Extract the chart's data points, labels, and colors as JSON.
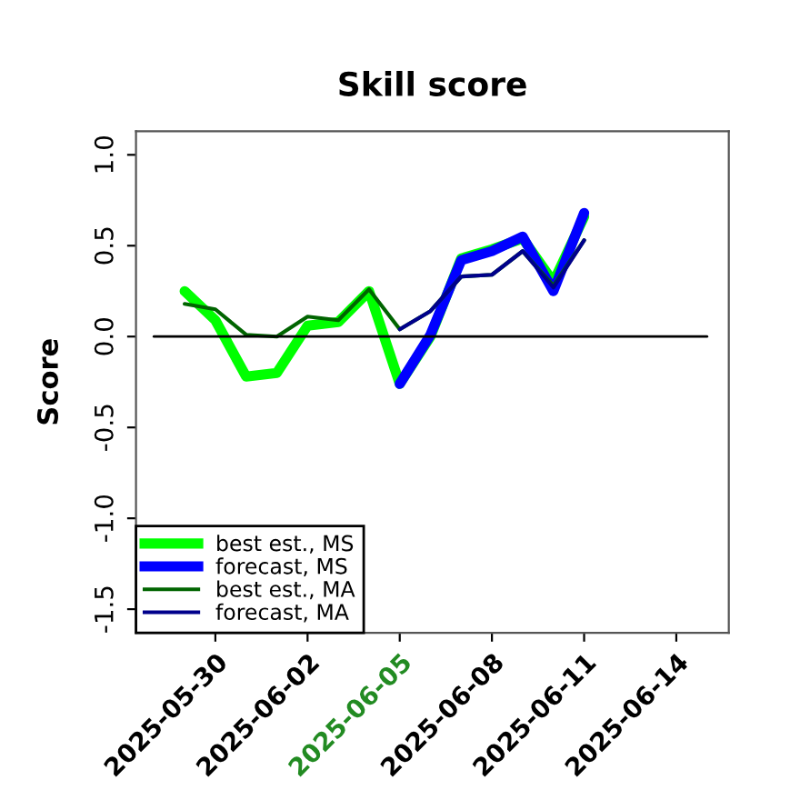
{
  "chart_data": {
    "type": "line",
    "title": "Skill score",
    "ylabel": "Score",
    "x": [
      "2025-05-29",
      "2025-05-30",
      "2025-05-31",
      "2025-06-01",
      "2025-06-02",
      "2025-06-03",
      "2025-06-04",
      "2025-06-05",
      "2025-06-06",
      "2025-06-07",
      "2025-06-08",
      "2025-06-09",
      "2025-06-10",
      "2025-06-11"
    ],
    "series": [
      {
        "name": "best est., MS",
        "color": "#00ff00",
        "values": [
          0.25,
          0.09,
          -0.22,
          -0.2,
          0.06,
          0.08,
          0.25,
          -0.26,
          0.0,
          0.43,
          0.48,
          0.54,
          0.3,
          0.66
        ]
      },
      {
        "name": "forecast, MS",
        "color": "#0000ff",
        "values": [
          null,
          null,
          null,
          null,
          null,
          null,
          null,
          -0.26,
          0.01,
          0.42,
          0.47,
          0.55,
          0.25,
          0.68
        ]
      },
      {
        "name": "best est., MA",
        "color": "#006400",
        "values": [
          0.18,
          0.15,
          0.01,
          0.0,
          0.11,
          0.09,
          0.26,
          0.04,
          0.14,
          0.33,
          0.34,
          0.47,
          0.28,
          0.53
        ]
      },
      {
        "name": "forecast, MA",
        "color": "#00008b",
        "values": [
          null,
          null,
          null,
          null,
          null,
          null,
          null,
          0.04,
          0.14,
          0.33,
          0.34,
          0.47,
          0.27,
          0.53
        ]
      },
      {
        "color": "#000000",
        "x": [
          "2025-05-28",
          "2025-06-15"
        ],
        "values": [
          0,
          0
        ]
      }
    ],
    "xlim": [
      "2025-05-27T10:00",
      "2025-06-15T17:00"
    ],
    "xticks": [
      {
        "value": "2025-05-30",
        "label": "2025-05-30"
      },
      {
        "value": "2025-06-02",
        "label": "2025-06-02"
      },
      {
        "value": "2025-06-05",
        "label": "2025-06-05"
      },
      {
        "value": "2025-06-08",
        "label": "2025-06-08"
      },
      {
        "value": "2025-06-11",
        "label": "2025-06-11"
      },
      {
        "value": "2025-06-14",
        "label": "2025-06-14"
      }
    ],
    "ylim": [
      -1.63,
      1.13
    ],
    "yticks": [
      {
        "value": -1.5,
        "label": "-1.5"
      },
      {
        "value": -1.0,
        "label": "-1.0"
      },
      {
        "value": -0.5,
        "label": "-0.5"
      },
      {
        "value": 0.0,
        "label": "0.0"
      },
      {
        "value": 0.5,
        "label": "0.5"
      },
      {
        "value": 1.0,
        "label": "1.0"
      }
    ],
    "grid": false,
    "legend": "bottom left",
    "line_style": "solid",
    "marker": "none"
  }
}
